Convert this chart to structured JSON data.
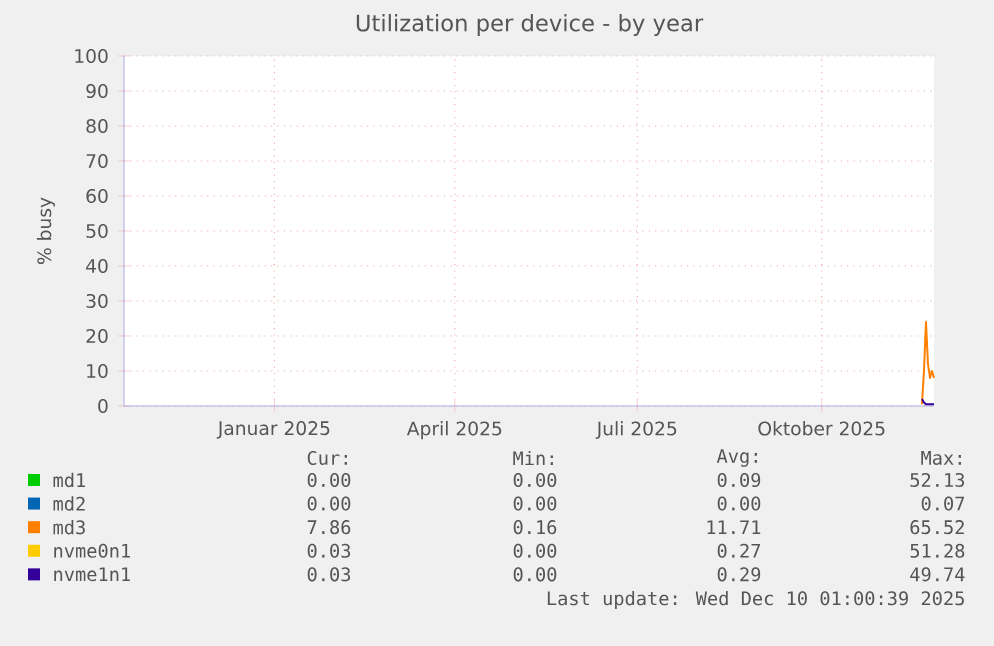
{
  "chart_data": {
    "type": "line",
    "title": "Utilization per device - by year",
    "ylabel": "% busy",
    "xlim": [
      "2024-11-01",
      "2025-12-10"
    ],
    "ylim": [
      0,
      100
    ],
    "xticks": [
      {
        "value": "2025-01-15",
        "label": "Januar 2025"
      },
      {
        "value": "2025-04-15",
        "label": "April 2025"
      },
      {
        "value": "2025-07-15",
        "label": "Juli 2025"
      },
      {
        "value": "2025-10-15",
        "label": "Oktober 2025"
      }
    ],
    "yticks": [
      0,
      10,
      20,
      30,
      40,
      50,
      60,
      70,
      80,
      90,
      100
    ],
    "grid": true,
    "legend": "bottom",
    "x": [
      "2025-12-04",
      "2025-12-05",
      "2025-12-06",
      "2025-12-07",
      "2025-12-08",
      "2025-12-09",
      "2025-12-10"
    ],
    "series": [
      {
        "name": "md1",
        "color": "#00cc00",
        "values": [
          null,
          null,
          null,
          null,
          null,
          null,
          null
        ]
      },
      {
        "name": "md2",
        "color": "#0066b3",
        "values": [
          null,
          null,
          null,
          null,
          null,
          null,
          null
        ]
      },
      {
        "name": "md3",
        "color": "#ff8000",
        "values": [
          0.5,
          10,
          24,
          12,
          8,
          10,
          8
        ]
      },
      {
        "name": "nvme0n1",
        "color": "#ffcc00",
        "values": [
          null,
          null,
          null,
          null,
          null,
          null,
          null
        ]
      },
      {
        "name": "nvme1n1",
        "color": "#330099",
        "values": [
          2,
          1,
          0.5,
          0.5,
          0.5,
          0.5,
          0.5
        ]
      }
    ],
    "annotations": [
      "Cur:",
      "Min:",
      "Avg:",
      "Max:",
      "0.00",
      "0.00",
      "0.09",
      "52.13",
      "0.00",
      "0.00",
      "0.00",
      "0.07",
      "7.86",
      "0.16",
      "11.71",
      "65.52",
      "0.03",
      "0.00",
      "0.27",
      "51.28",
      "0.03",
      "0.00",
      "0.29",
      "49.74",
      "Last update: Wed Dec 10 01:00:39 2025"
    ]
  }
}
